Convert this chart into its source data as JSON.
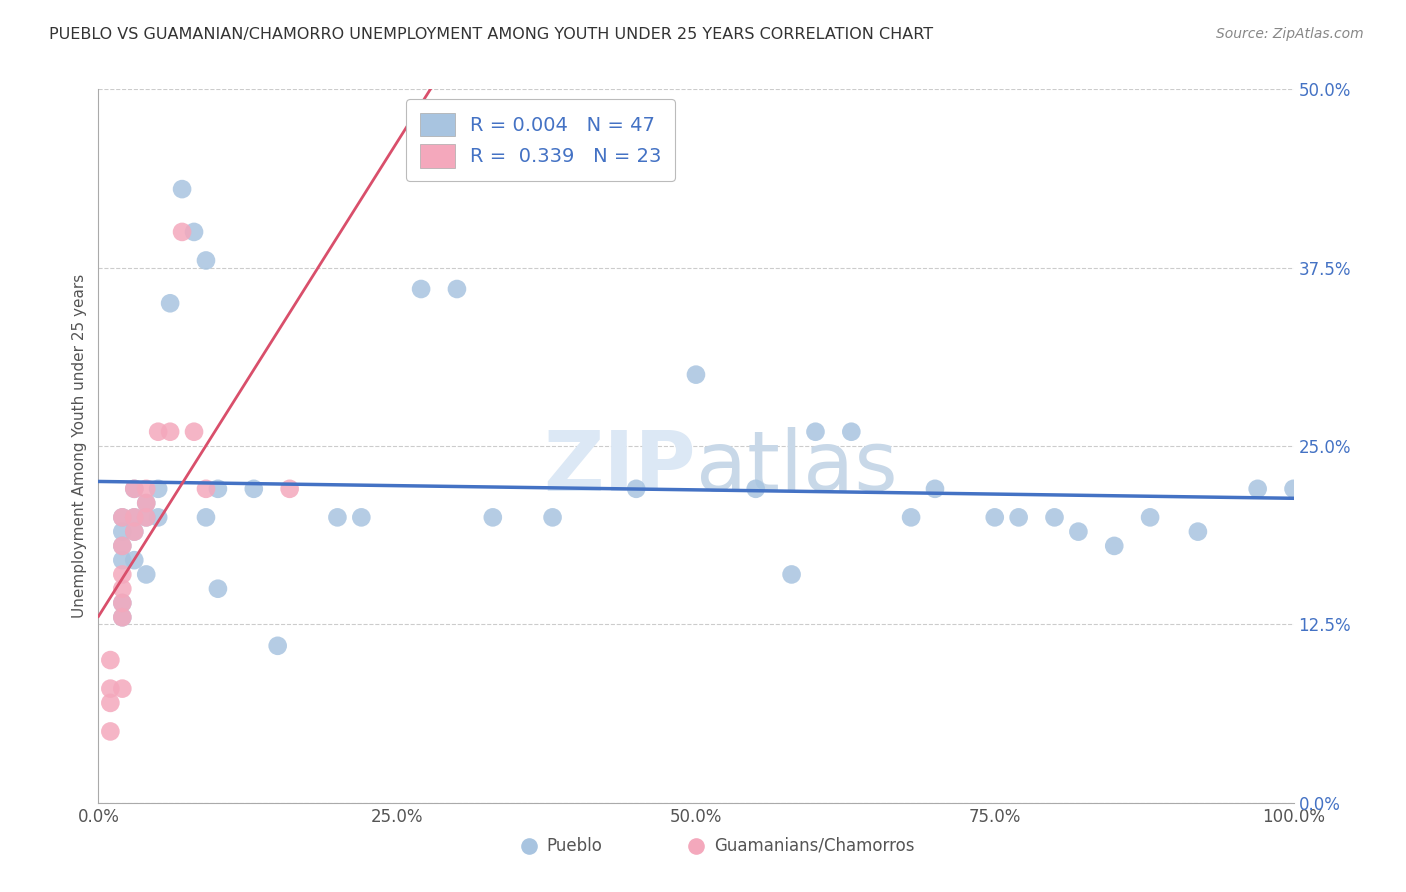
{
  "title": "PUEBLO VS GUAMANIAN/CHAMORRO UNEMPLOYMENT AMONG YOUTH UNDER 25 YEARS CORRELATION CHART",
  "source": "Source: ZipAtlas.com",
  "ylabel": "Unemployment Among Youth under 25 years",
  "pueblo_color": "#a8c4e0",
  "guamanian_color": "#f4a8bc",
  "pueblo_line_color": "#4472c4",
  "guamanian_line_color": "#d94f6b",
  "watermark_color": "#d8e4f0",
  "xlim": [
    0,
    1.0
  ],
  "ylim": [
    0,
    0.5
  ],
  "pueblo_x": [
    0.02,
    0.02,
    0.02,
    0.02,
    0.02,
    0.02,
    0.03,
    0.03,
    0.03,
    0.03,
    0.04,
    0.04,
    0.04,
    0.05,
    0.05,
    0.06,
    0.07,
    0.08,
    0.09,
    0.09,
    0.1,
    0.1,
    0.13,
    0.15,
    0.2,
    0.22,
    0.27,
    0.3,
    0.33,
    0.38,
    0.45,
    0.5,
    0.55,
    0.58,
    0.6,
    0.63,
    0.68,
    0.7,
    0.75,
    0.77,
    0.8,
    0.82,
    0.85,
    0.88,
    0.92,
    0.97,
    1.0
  ],
  "pueblo_y": [
    0.2,
    0.19,
    0.18,
    0.17,
    0.14,
    0.13,
    0.22,
    0.2,
    0.19,
    0.17,
    0.21,
    0.2,
    0.16,
    0.22,
    0.2,
    0.35,
    0.43,
    0.4,
    0.38,
    0.2,
    0.22,
    0.15,
    0.22,
    0.11,
    0.2,
    0.2,
    0.36,
    0.36,
    0.2,
    0.2,
    0.22,
    0.3,
    0.22,
    0.16,
    0.26,
    0.26,
    0.2,
    0.22,
    0.2,
    0.2,
    0.2,
    0.19,
    0.18,
    0.2,
    0.19,
    0.22,
    0.22
  ],
  "guamanian_x": [
    0.01,
    0.01,
    0.01,
    0.01,
    0.02,
    0.02,
    0.02,
    0.02,
    0.02,
    0.02,
    0.02,
    0.03,
    0.03,
    0.03,
    0.04,
    0.04,
    0.04,
    0.05,
    0.06,
    0.07,
    0.08,
    0.09,
    0.16
  ],
  "guamanian_y": [
    0.1,
    0.08,
    0.07,
    0.05,
    0.2,
    0.18,
    0.16,
    0.15,
    0.14,
    0.13,
    0.08,
    0.22,
    0.2,
    0.19,
    0.22,
    0.21,
    0.2,
    0.26,
    0.26,
    0.4,
    0.26,
    0.22,
    0.22
  ]
}
